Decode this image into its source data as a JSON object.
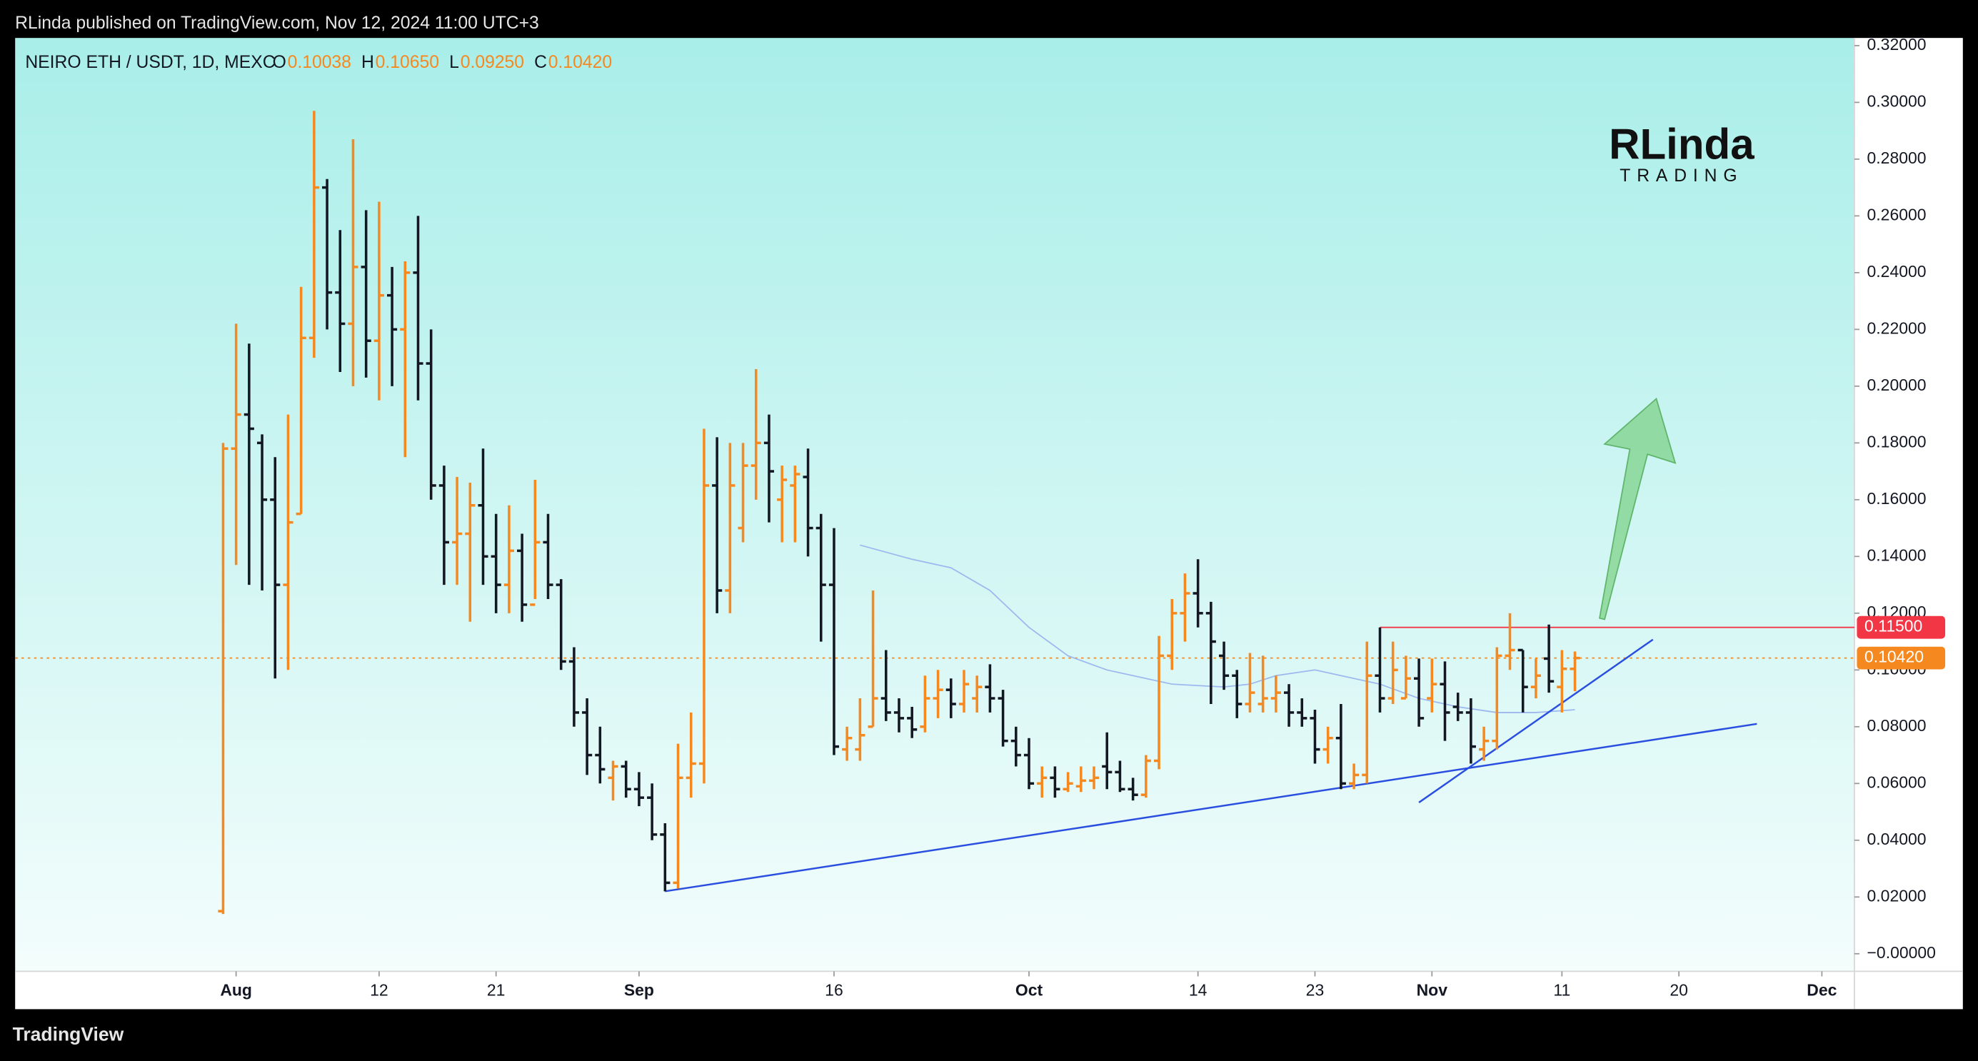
{
  "chart_data": {
    "type": "ohlc",
    "title": "RLinda published on TradingView.com, Nov 12, 2024 11:00 UTC+3",
    "subtitle": "NEIRO ETH / USDT, 1D, MEXC",
    "ohlc_labels": [
      "O",
      "H",
      "L",
      "C"
    ],
    "ohlc_value_labels": [
      "0.10038",
      "0.10650",
      "0.09250",
      "0.10420"
    ],
    "logo": [
      "RLinda",
      "TRADING"
    ],
    "footer": "TradingView",
    "up_color": "#f5891f",
    "down_color": "#131722",
    "grid": false,
    "xlim": [
      -17,
      124.5
    ],
    "xticks": [
      {
        "value": 0,
        "label": "Aug"
      },
      {
        "value": 11,
        "label": "12"
      },
      {
        "value": 20,
        "label": "21"
      },
      {
        "value": 31,
        "label": "Sep"
      },
      {
        "value": 46,
        "label": "16"
      },
      {
        "value": 61,
        "label": "Oct"
      },
      {
        "value": 74,
        "label": "14"
      },
      {
        "value": 83,
        "label": "23"
      },
      {
        "value": 92,
        "label": "Nov"
      },
      {
        "value": 102,
        "label": "11"
      },
      {
        "value": 111,
        "label": "20"
      },
      {
        "value": 122,
        "label": "Dec"
      }
    ],
    "ylim": [
      -0.0062,
      0.3227
    ],
    "yticks": [
      {
        "value": 0,
        "label": "−0.00000"
      },
      {
        "value": 0.02,
        "label": "0.02000"
      },
      {
        "value": 0.04,
        "label": "0.04000"
      },
      {
        "value": 0.06,
        "label": "0.06000"
      },
      {
        "value": 0.08,
        "label": "0.08000"
      },
      {
        "value": 0.1,
        "label": "0.10000"
      },
      {
        "value": 0.12,
        "label": "0.12000"
      },
      {
        "value": 0.14,
        "label": "0.14000"
      },
      {
        "value": 0.16,
        "label": "0.16000"
      },
      {
        "value": 0.18,
        "label": "0.18000"
      },
      {
        "value": 0.2,
        "label": "0.20000"
      },
      {
        "value": 0.22,
        "label": "0.22000"
      },
      {
        "value": 0.24,
        "label": "0.24000"
      },
      {
        "value": 0.26,
        "label": "0.26000"
      },
      {
        "value": 0.28,
        "label": "0.28000"
      },
      {
        "value": 0.3,
        "label": "0.30000"
      },
      {
        "value": 0.32,
        "label": "0.32000"
      }
    ],
    "x": [
      -1,
      0,
      1,
      2,
      3,
      4,
      5,
      6,
      7,
      8,
      9,
      10,
      11,
      12,
      13,
      14,
      15,
      16,
      17,
      18,
      19,
      20,
      21,
      22,
      23,
      24,
      25,
      26,
      27,
      28,
      29,
      30,
      31,
      32,
      33,
      34,
      35,
      36,
      37,
      38,
      39,
      40,
      41,
      42,
      43,
      44,
      45,
      46,
      47,
      48,
      49,
      50,
      51,
      52,
      53,
      54,
      55,
      56,
      57,
      58,
      59,
      60,
      61,
      62,
      63,
      64,
      65,
      66,
      67,
      68,
      69,
      70,
      71,
      72,
      73,
      74,
      75,
      76,
      77,
      78,
      79,
      80,
      81,
      82,
      83,
      84,
      85,
      86,
      87,
      88,
      89,
      90,
      91,
      92,
      93,
      94,
      95,
      96,
      97,
      98,
      99,
      100,
      101,
      102,
      103
    ],
    "open": [
      0.015,
      0.178,
      0.19,
      0.18,
      0.16,
      0.13,
      0.155,
      0.217,
      0.27,
      0.233,
      0.222,
      0.242,
      0.216,
      0.232,
      0.22,
      0.24,
      0.208,
      0.165,
      0.145,
      0.148,
      0.158,
      0.14,
      0.13,
      0.142,
      0.123,
      0.145,
      0.13,
      0.103,
      0.085,
      0.07,
      0.062,
      0.066,
      0.058,
      0.055,
      0.042,
      0.025,
      0.062,
      0.067,
      0.165,
      0.128,
      0.15,
      0.172,
      0.18,
      0.16,
      0.165,
      0.168,
      0.15,
      0.13,
      0.072,
      0.072,
      0.08,
      0.09,
      0.085,
      0.083,
      0.08,
      0.09,
      0.093,
      0.088,
      0.09,
      0.094,
      0.09,
      0.075,
      0.07,
      0.06,
      0.062,
      0.058,
      0.059,
      0.061,
      0.066,
      0.064,
      0.058,
      0.056,
      0.068,
      0.105,
      0.12,
      0.127,
      0.12,
      0.105,
      0.098,
      0.088,
      0.088,
      0.09,
      0.092,
      0.085,
      0.083,
      0.072,
      0.076,
      0.06,
      0.063,
      0.098,
      0.09,
      0.09,
      0.097,
      0.09,
      0.095,
      0.087,
      0.085,
      0.072,
      0.075,
      0.105,
      0.107,
      0.094,
      0.104,
      0.094,
      0.10038
    ],
    "high": [
      0.18,
      0.222,
      0.215,
      0.183,
      0.175,
      0.19,
      0.235,
      0.297,
      0.273,
      0.255,
      0.287,
      0.262,
      0.265,
      0.242,
      0.244,
      0.26,
      0.22,
      0.172,
      0.168,
      0.166,
      0.178,
      0.155,
      0.158,
      0.148,
      0.167,
      0.155,
      0.132,
      0.108,
      0.09,
      0.08,
      0.068,
      0.068,
      0.064,
      0.06,
      0.046,
      0.074,
      0.085,
      0.185,
      0.182,
      0.18,
      0.18,
      0.206,
      0.19,
      0.172,
      0.172,
      0.178,
      0.155,
      0.15,
      0.08,
      0.09,
      0.128,
      0.107,
      0.09,
      0.087,
      0.098,
      0.1,
      0.097,
      0.1,
      0.098,
      0.102,
      0.093,
      0.08,
      0.076,
      0.066,
      0.066,
      0.064,
      0.066,
      0.066,
      0.078,
      0.068,
      0.062,
      0.07,
      0.112,
      0.125,
      0.134,
      0.139,
      0.124,
      0.11,
      0.1,
      0.106,
      0.105,
      0.098,
      0.095,
      0.09,
      0.086,
      0.08,
      0.088,
      0.067,
      0.11,
      0.115,
      0.11,
      0.105,
      0.104,
      0.104,
      0.103,
      0.092,
      0.09,
      0.08,
      0.108,
      0.12,
      0.107,
      0.104,
      0.116,
      0.107,
      0.1065
    ],
    "low": [
      0.014,
      0.137,
      0.13,
      0.128,
      0.097,
      0.1,
      0.155,
      0.21,
      0.22,
      0.205,
      0.2,
      0.203,
      0.195,
      0.2,
      0.175,
      0.195,
      0.16,
      0.13,
      0.13,
      0.117,
      0.13,
      0.12,
      0.12,
      0.117,
      0.125,
      0.125,
      0.1,
      0.08,
      0.063,
      0.06,
      0.054,
      0.055,
      0.052,
      0.04,
      0.022,
      0.023,
      0.055,
      0.06,
      0.12,
      0.12,
      0.145,
      0.16,
      0.152,
      0.145,
      0.145,
      0.14,
      0.11,
      0.07,
      0.068,
      0.068,
      0.08,
      0.082,
      0.078,
      0.076,
      0.078,
      0.083,
      0.083,
      0.085,
      0.085,
      0.085,
      0.073,
      0.066,
      0.058,
      0.055,
      0.055,
      0.057,
      0.057,
      0.058,
      0.058,
      0.057,
      0.054,
      0.055,
      0.065,
      0.1,
      0.11,
      0.115,
      0.088,
      0.093,
      0.083,
      0.085,
      0.085,
      0.085,
      0.08,
      0.08,
      0.067,
      0.067,
      0.058,
      0.058,
      0.06,
      0.085,
      0.088,
      0.09,
      0.08,
      0.085,
      0.075,
      0.082,
      0.067,
      0.068,
      0.072,
      0.1,
      0.085,
      0.09,
      0.092,
      0.085,
      0.0925
    ],
    "close": [
      0.178,
      0.19,
      0.185,
      0.16,
      0.13,
      0.152,
      0.217,
      0.27,
      0.233,
      0.222,
      0.242,
      0.216,
      0.232,
      0.22,
      0.24,
      0.208,
      0.165,
      0.145,
      0.148,
      0.158,
      0.14,
      0.13,
      0.142,
      0.123,
      0.145,
      0.13,
      0.103,
      0.085,
      0.07,
      0.065,
      0.066,
      0.058,
      0.055,
      0.042,
      0.025,
      0.062,
      0.067,
      0.165,
      0.128,
      0.165,
      0.172,
      0.18,
      0.17,
      0.167,
      0.169,
      0.15,
      0.13,
      0.073,
      0.076,
      0.077,
      0.09,
      0.085,
      0.083,
      0.079,
      0.09,
      0.093,
      0.088,
      0.095,
      0.094,
      0.09,
      0.075,
      0.07,
      0.06,
      0.062,
      0.058,
      0.06,
      0.061,
      0.062,
      0.064,
      0.058,
      0.056,
      0.068,
      0.105,
      0.12,
      0.127,
      0.12,
      0.11,
      0.098,
      0.088,
      0.092,
      0.09,
      0.092,
      0.085,
      0.083,
      0.072,
      0.076,
      0.06,
      0.063,
      0.098,
      0.09,
      0.1,
      0.097,
      0.083,
      0.095,
      0.085,
      0.085,
      0.073,
      0.075,
      0.105,
      0.107,
      0.094,
      0.098,
      0.096,
      0.1004,
      0.1042
    ],
    "moving_average": {
      "color": "#9db8ee",
      "x": [
        48,
        52,
        55,
        58,
        61,
        64,
        67,
        70,
        72,
        76,
        78,
        80,
        83,
        85,
        88,
        91,
        94,
        97,
        100,
        103
      ],
      "values": [
        0.144,
        0.139,
        0.136,
        0.128,
        0.115,
        0.105,
        0.1,
        0.097,
        0.095,
        0.094,
        0.095,
        0.098,
        0.1,
        0.098,
        0.095,
        0.09,
        0.087,
        0.085,
        0.085,
        0.086
      ]
    },
    "trendlines": [
      {
        "color": "#2a4fe0",
        "x": [
          33,
          117
        ],
        "values": [
          0.022,
          0.081
        ]
      },
      {
        "color": "#2a4fe0",
        "x": [
          91,
          109
        ],
        "values": [
          0.0533,
          0.1107
        ]
      }
    ],
    "levels": [
      {
        "value": 0.115,
        "label": "0.11500",
        "color": "#f23645",
        "from": 88,
        "dashed": false
      },
      {
        "value": 0.1042,
        "label": "0.10420",
        "color": "#f5891f",
        "from": -17,
        "dashed": true
      }
    ]
  }
}
